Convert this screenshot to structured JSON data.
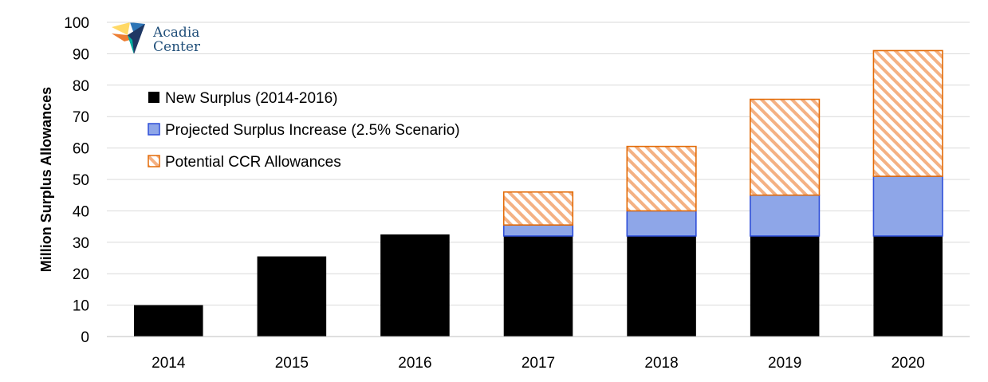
{
  "chart_data": {
    "type": "bar",
    "stacked": true,
    "categories": [
      "2014",
      "2015",
      "2016",
      "2017",
      "2018",
      "2019",
      "2020"
    ],
    "series": [
      {
        "name": "New Surplus (2014-2016)",
        "values": [
          10,
          25.5,
          32.5,
          32,
          32,
          32,
          32
        ],
        "color": "#000000",
        "pattern": "solid"
      },
      {
        "name": "Projected Surplus Increase (2.5% Scenario)",
        "values": [
          0,
          0,
          0,
          3.5,
          8,
          13,
          19
        ],
        "color": "#8ea6e8",
        "border_color": "#2f4fd8",
        "pattern": "solid"
      },
      {
        "name": "Potential CCR Allowances",
        "values": [
          0,
          0,
          0,
          10.5,
          20.5,
          30.5,
          40
        ],
        "color": "#f4b183",
        "border_color": "#e36c09",
        "pattern": "diagonal-hatch"
      }
    ],
    "ylabel": "Million Surplus Allowances",
    "xlabel": "",
    "ylim": [
      0,
      100
    ],
    "yticks": [
      0,
      10,
      20,
      30,
      40,
      50,
      60,
      70,
      80,
      90,
      100
    ],
    "grid": true,
    "legend_position": "top-left"
  },
  "logo": {
    "text_line1": "Acadia",
    "text_line2": "Center"
  }
}
